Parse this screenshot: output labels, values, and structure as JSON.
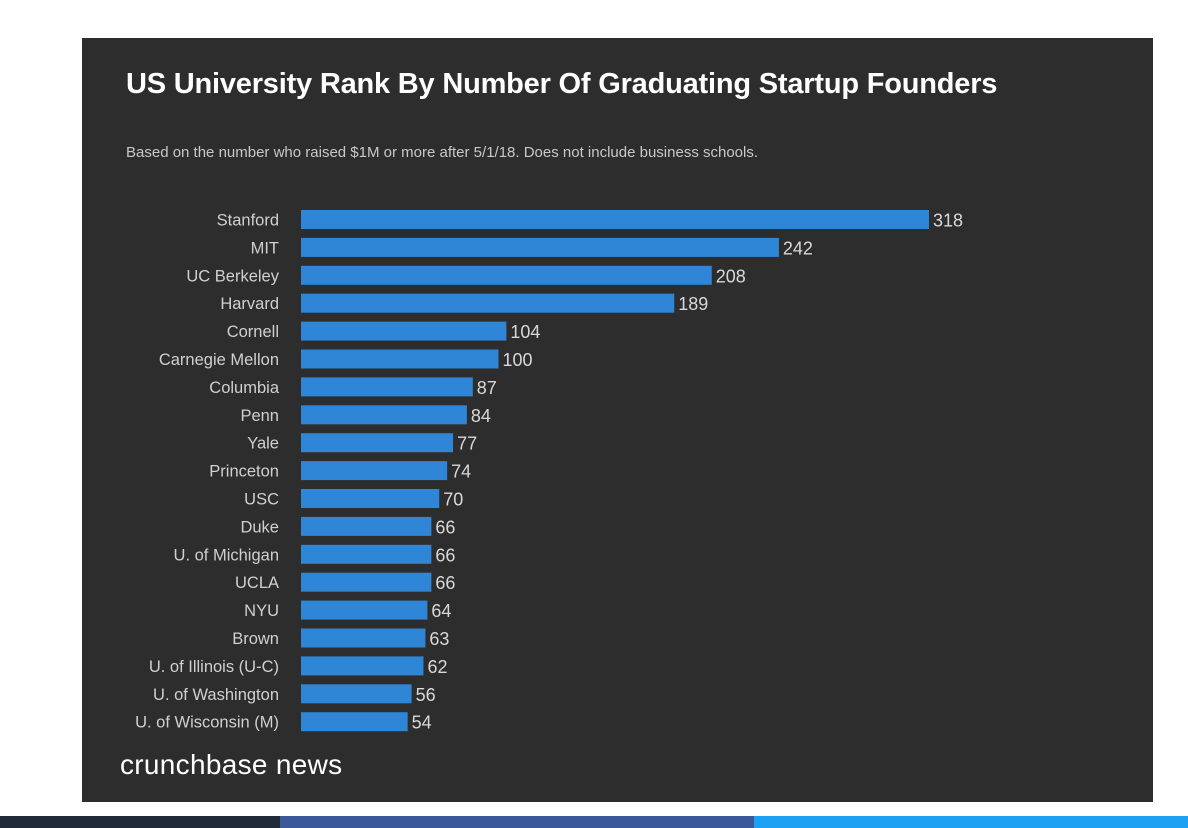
{
  "colors": {
    "card": "#2d2d2e",
    "bar": "#2f86d6",
    "label": "#d0d0d0",
    "value": "#d8d8d8"
  },
  "brand": "crunchbase news",
  "chart_data": {
    "type": "bar",
    "orientation": "horizontal",
    "title": "US University Rank By Number Of Graduating Startup Founders",
    "subtitle": "Based on the number who raised $1M or more after 5/1/18. Does not include business schools.",
    "xlabel": "",
    "ylabel": "",
    "xlim": [
      0,
      318
    ],
    "grid": false,
    "legend": "none",
    "categories": [
      "Stanford",
      "MIT",
      "UC Berkeley",
      "Harvard",
      "Cornell",
      "Carnegie Mellon",
      "Columbia",
      "Penn",
      "Yale",
      "Princeton",
      "USC",
      "Duke",
      "U. of Michigan",
      "UCLA",
      "NYU",
      "Brown",
      "U. of Illinois (U-C)",
      "U. of Washington",
      "U. of Wisconsin (M)"
    ],
    "values": [
      318,
      242,
      208,
      189,
      104,
      100,
      87,
      84,
      77,
      74,
      70,
      66,
      66,
      66,
      64,
      63,
      62,
      56,
      54
    ]
  },
  "bottom_strip": [
    "#1f2937",
    "#3b5998",
    "#1da1f2"
  ]
}
